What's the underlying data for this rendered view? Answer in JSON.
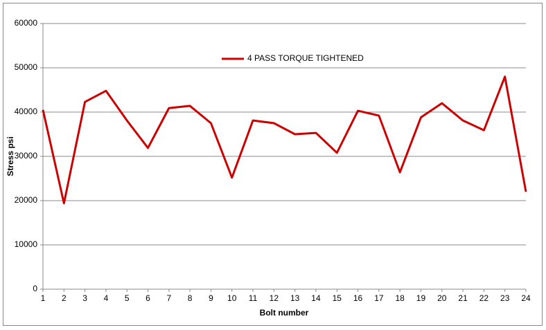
{
  "chart_data": {
    "type": "line",
    "x_label": "Bolt number",
    "y_label": "Stress psi",
    "x": [
      1,
      2,
      3,
      4,
      5,
      6,
      7,
      8,
      9,
      10,
      11,
      12,
      13,
      14,
      15,
      16,
      17,
      18,
      19,
      20,
      21,
      22,
      23,
      24
    ],
    "series": [
      {
        "name": "4 PASS TORQUE TIGHTENED",
        "color": "#cc0000",
        "values": [
          40500,
          19400,
          42300,
          44800,
          38100,
          31900,
          40900,
          41400,
          37500,
          25200,
          38100,
          37500,
          35000,
          35300,
          30800,
          40300,
          39200,
          26400,
          38800,
          42000,
          38100,
          35900,
          48000,
          22000
        ]
      }
    ],
    "xlim": [
      1,
      24
    ],
    "xticks": [
      1,
      2,
      3,
      4,
      5,
      6,
      7,
      8,
      9,
      10,
      11,
      12,
      13,
      14,
      15,
      16,
      17,
      18,
      19,
      20,
      21,
      22,
      23,
      24
    ],
    "ylim": [
      0,
      60000
    ],
    "yticks": [
      0,
      10000,
      20000,
      30000,
      40000,
      50000,
      60000
    ],
    "grid": true,
    "legend": "top"
  }
}
